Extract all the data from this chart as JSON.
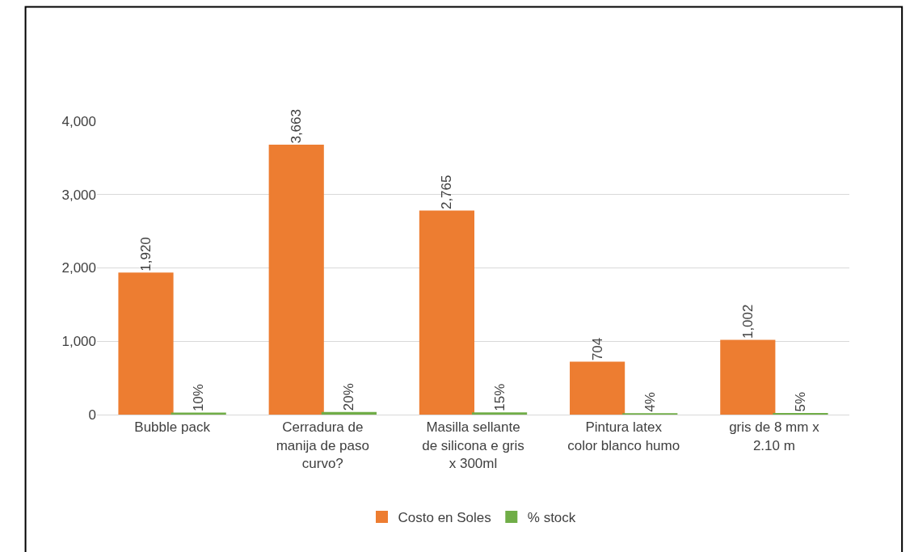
{
  "chart_data": {
    "type": "bar",
    "categories": [
      "Bubble pack",
      "Cerradura de manija de paso curvo?",
      "Masilla sellante de silicona e gris x 300ml",
      "Pintura latex color blanco humo",
      "gris de 8 mm x 2.10 m"
    ],
    "series": [
      {
        "name": "Costo en Soles",
        "color": "#ed7d31",
        "values": [
          1920,
          3663,
          2765,
          704,
          1002
        ],
        "value_labels": [
          "1,920",
          "3,663",
          "2,765",
          "704",
          "1,002"
        ]
      },
      {
        "name": "% stock",
        "color": "#70ad47",
        "values": [
          10,
          20,
          15,
          4,
          5
        ],
        "value_labels": [
          "10%",
          "20%",
          "15%",
          "4%",
          "5%"
        ]
      }
    ],
    "ylim": [
      0,
      4000
    ],
    "yticks": [
      {
        "value": 0,
        "label": "0"
      },
      {
        "value": 1000,
        "label": "1,000"
      },
      {
        "value": 2000,
        "label": "2,000"
      },
      {
        "value": 3000,
        "label": "3,000"
      },
      {
        "value": 4000,
        "label": "4,000"
      }
    ],
    "grid": "y",
    "legend": "bottom"
  }
}
